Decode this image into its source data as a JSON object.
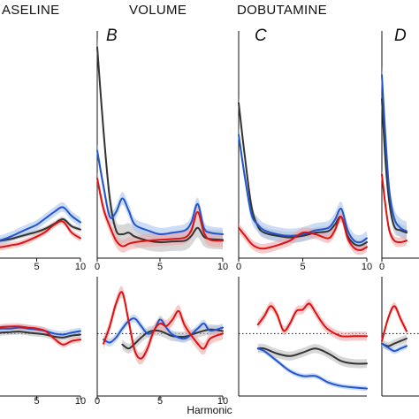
{
  "titles": [
    "ASELINE",
    "VOLUME",
    "DOBUTAMINE"
  ],
  "panel_labels": [
    "B",
    "C",
    "D"
  ],
  "x_axis_label": "Harmonic",
  "colors": {
    "black": "#333333",
    "blue": "#2255cc",
    "red": "#dd1111",
    "black_band": "#bdbdbd",
    "blue_band": "#aac4ee",
    "red_band": "#f0a8a8"
  },
  "chart_data": [
    {
      "type": "line",
      "row": "top",
      "condition": "BASELINE",
      "xlim": [
        0,
        10
      ],
      "xticks": [
        0,
        5,
        10
      ],
      "series": [
        {
          "color": "black",
          "x": [
            -1,
            0,
            1,
            2,
            3,
            4,
            5,
            6,
            7,
            8,
            9,
            10
          ],
          "y": [
            0.4,
            0.4,
            0.42,
            0.44,
            0.47,
            0.5,
            0.53,
            0.57,
            0.63,
            0.69,
            0.6,
            0.56
          ],
          "band": 0.03
        },
        {
          "color": "blue",
          "x": [
            -1,
            0,
            1,
            2,
            3,
            4,
            5,
            6,
            7,
            8,
            9,
            10
          ],
          "y": [
            0.42,
            0.41,
            0.43,
            0.47,
            0.52,
            0.57,
            0.62,
            0.7,
            0.78,
            0.84,
            0.73,
            0.65
          ],
          "band": 0.06
        },
        {
          "color": "red",
          "x": [
            -1,
            0,
            1,
            2,
            3,
            4,
            5,
            6,
            7,
            8,
            9,
            10
          ],
          "y": [
            0.34,
            0.33,
            0.34,
            0.36,
            0.38,
            0.42,
            0.47,
            0.53,
            0.62,
            0.66,
            0.52,
            0.45
          ],
          "band": 0.04
        }
      ]
    },
    {
      "type": "line",
      "row": "top",
      "condition": "VOLUME",
      "xlim": [
        0,
        10
      ],
      "xticks": [
        0,
        5,
        10
      ],
      "series": [
        {
          "color": "black",
          "x": [
            0,
            0.5,
            1,
            1.5,
            2,
            2.5,
            3,
            4,
            5,
            6,
            7,
            7.5,
            8,
            8.5,
            9,
            10
          ],
          "y": [
            2.85,
            1.8,
            0.95,
            0.55,
            0.5,
            0.52,
            0.47,
            0.42,
            0.4,
            0.41,
            0.42,
            0.48,
            0.58,
            0.47,
            0.44,
            0.43
          ],
          "band": 0.12
        },
        {
          "color": "blue",
          "x": [
            0,
            0.5,
            1,
            1.5,
            2,
            2.5,
            3,
            4,
            5,
            6,
            7,
            7.5,
            8,
            8.5,
            9,
            10
          ],
          "y": [
            1.55,
            1.1,
            0.72,
            0.78,
            0.95,
            0.8,
            0.62,
            0.55,
            0.5,
            0.52,
            0.55,
            0.65,
            0.88,
            0.58,
            0.52,
            0.5
          ],
          "band": 0.08
        },
        {
          "color": "red",
          "x": [
            0,
            0.5,
            1,
            1.5,
            2,
            2.5,
            3,
            4,
            5,
            6,
            7,
            7.5,
            8,
            8.5,
            9,
            10
          ],
          "y": [
            1.2,
            0.82,
            0.6,
            0.42,
            0.35,
            0.38,
            0.4,
            0.42,
            0.43,
            0.44,
            0.46,
            0.55,
            0.78,
            0.52,
            0.43,
            0.42
          ],
          "band": 0.08
        }
      ]
    },
    {
      "type": "line",
      "row": "top",
      "condition": "DOBUTAMINE",
      "xlim": [
        0,
        10
      ],
      "xticks": [
        0,
        5,
        10
      ],
      "series": [
        {
          "color": "black",
          "x": [
            0,
            0.5,
            1,
            1.5,
            2,
            3,
            4,
            5,
            6,
            7,
            7.5,
            8,
            8.5,
            9,
            9.5,
            10
          ],
          "y": [
            2.15,
            1.45,
            0.85,
            0.6,
            0.52,
            0.48,
            0.46,
            0.48,
            0.52,
            0.54,
            0.62,
            0.72,
            0.48,
            0.38,
            0.36,
            0.4
          ],
          "band": 0.07
        },
        {
          "color": "blue",
          "x": [
            0,
            0.5,
            1,
            1.5,
            2,
            3,
            4,
            5,
            6,
            7,
            7.5,
            8,
            8.5,
            9,
            9.5,
            10
          ],
          "y": [
            1.75,
            1.2,
            0.75,
            0.62,
            0.55,
            0.5,
            0.48,
            0.5,
            0.55,
            0.58,
            0.68,
            0.82,
            0.55,
            0.42,
            0.4,
            0.45
          ],
          "band": 0.09
        },
        {
          "color": "red",
          "x": [
            0,
            0.5,
            1,
            1.5,
            2,
            3,
            4,
            5,
            6,
            7,
            7.5,
            8,
            8.5,
            9,
            9.5,
            10
          ],
          "y": [
            0.58,
            0.48,
            0.38,
            0.33,
            0.32,
            0.36,
            0.42,
            0.52,
            0.5,
            0.45,
            0.55,
            0.72,
            0.45,
            0.33,
            0.3,
            0.34
          ],
          "band": 0.06
        }
      ]
    },
    {
      "type": "line",
      "row": "top",
      "condition": "D",
      "xlim": [
        0,
        10
      ],
      "xticks": [
        0
      ],
      "series": [
        {
          "color": "black",
          "x": [
            0,
            0.3,
            0.6,
            1.0,
            1.5,
            2.0
          ],
          "y": [
            2.2,
            1.4,
            0.9,
            0.6,
            0.55,
            0.52
          ],
          "band": 0.08
        },
        {
          "color": "blue",
          "x": [
            0,
            0.3,
            0.6,
            1.0,
            1.5,
            2.0
          ],
          "y": [
            2.5,
            1.7,
            1.05,
            0.7,
            0.58,
            0.54
          ],
          "band": 0.12
        },
        {
          "color": "red",
          "x": [
            0,
            0.3,
            0.6,
            1.0,
            1.5,
            2.0
          ],
          "y": [
            1.25,
            0.85,
            0.55,
            0.42,
            0.4,
            0.42
          ],
          "band": 0.06
        }
      ]
    },
    {
      "type": "line",
      "row": "bottom",
      "condition": "BASELINE",
      "xlim": [
        0,
        10
      ],
      "xticks": [
        5,
        10
      ],
      "series": [
        {
          "color": "black",
          "x": [
            -1,
            0,
            1,
            2,
            3,
            4,
            5,
            6,
            7,
            8,
            9,
            10
          ],
          "y": [
            0.02,
            0.0,
            0.02,
            0.03,
            0.04,
            0.02,
            0.0,
            -0.02,
            -0.06,
            -0.08,
            -0.04,
            -0.02
          ],
          "band": 0.06
        },
        {
          "color": "blue",
          "x": [
            -1,
            0,
            1,
            2,
            3,
            4,
            5,
            6,
            7,
            8,
            9,
            10
          ],
          "y": [
            0.06,
            0.08,
            0.1,
            0.1,
            0.12,
            0.1,
            0.08,
            0.05,
            0.0,
            -0.02,
            0.02,
            0.05
          ],
          "band": 0.07
        },
        {
          "color": "red",
          "x": [
            -1,
            0,
            1,
            2,
            3,
            4,
            5,
            6,
            7,
            8,
            9,
            10
          ],
          "y": [
            0.05,
            0.1,
            0.13,
            0.14,
            0.14,
            0.12,
            0.1,
            0.05,
            -0.1,
            -0.22,
            -0.15,
            -0.12
          ],
          "band": 0.06
        }
      ]
    },
    {
      "type": "line",
      "row": "bottom",
      "condition": "VOLUME",
      "xlim": [
        0,
        10
      ],
      "xticks": [
        0,
        5,
        10
      ],
      "series": [
        {
          "color": "black",
          "x": [
            2,
            2.5,
            3,
            3.5,
            4,
            4.5,
            5,
            5.5,
            6,
            7,
            8,
            9,
            10
          ],
          "y": [
            -0.22,
            -0.3,
            -0.2,
            -0.08,
            0.02,
            0.06,
            0.05,
            0.0,
            -0.05,
            -0.06,
            0.02,
            0.08,
            0.05
          ],
          "band": 0.1
        },
        {
          "color": "blue",
          "x": [
            0.5,
            1,
            1.5,
            2,
            2.5,
            3,
            3.5,
            4,
            4.5,
            5,
            5.5,
            6,
            7,
            8,
            8.5,
            9,
            10
          ],
          "y": [
            -0.12,
            -0.18,
            -0.08,
            0.1,
            0.25,
            0.3,
            0.15,
            0.0,
            0.05,
            0.28,
            0.12,
            -0.02,
            -0.1,
            0.1,
            0.2,
            0.06,
            0.12
          ],
          "band": 0.08
        },
        {
          "color": "red",
          "x": [
            0.5,
            1,
            1.5,
            2,
            2.5,
            3,
            3.5,
            4,
            4.5,
            5,
            5.5,
            6,
            6.5,
            7,
            8,
            8.5,
            9,
            10
          ],
          "y": [
            -0.2,
            0.15,
            0.6,
            0.82,
            0.25,
            -0.35,
            -0.5,
            -0.3,
            0.05,
            0.2,
            0.15,
            0.28,
            0.45,
            0.15,
            -0.2,
            -0.3,
            -0.1,
            0.0
          ],
          "band": 0.12
        }
      ]
    },
    {
      "type": "line",
      "row": "bottom",
      "condition": "DOBUTAMINE",
      "xlim": [
        0,
        10
      ],
      "xticks": [],
      "series": [
        {
          "color": "black",
          "x": [
            1.5,
            2,
            3,
            4,
            5,
            6,
            7,
            8,
            9,
            10
          ],
          "y": [
            -0.3,
            -0.3,
            -0.4,
            -0.45,
            -0.38,
            -0.3,
            -0.4,
            -0.55,
            -0.6,
            -0.6
          ],
          "band": 0.09
        },
        {
          "color": "blue",
          "x": [
            1.5,
            2,
            3,
            4,
            5,
            6,
            7,
            8,
            9,
            10
          ],
          "y": [
            -0.3,
            -0.35,
            -0.55,
            -0.75,
            -0.85,
            -0.85,
            -0.98,
            -1.05,
            -1.08,
            -1.1
          ],
          "band": 0.05
        },
        {
          "color": "red",
          "x": [
            1.5,
            2,
            2.5,
            3,
            3.5,
            4,
            4.5,
            5,
            5.5,
            6,
            6.5,
            7,
            8,
            9,
            10
          ],
          "y": [
            0.18,
            0.35,
            0.55,
            0.38,
            0.06,
            0.2,
            0.45,
            0.48,
            0.6,
            0.42,
            0.22,
            0.08,
            -0.05,
            -0.05,
            -0.05
          ],
          "band": 0.09
        }
      ]
    },
    {
      "type": "line",
      "row": "bottom",
      "condition": "D",
      "xlim": [
        0,
        10
      ],
      "xticks": [],
      "series": [
        {
          "color": "black",
          "x": [
            0,
            0.5,
            1,
            1.5,
            2
          ],
          "y": [
            -0.2,
            -0.25,
            -0.2,
            -0.15,
            -0.1
          ],
          "band": 0.08
        },
        {
          "color": "blue",
          "x": [
            0,
            0.5,
            1,
            1.5,
            2
          ],
          "y": [
            -0.2,
            -0.28,
            -0.35,
            -0.3,
            -0.25
          ],
          "band": 0.06
        },
        {
          "color": "red",
          "x": [
            0,
            0.5,
            1,
            1.5,
            2
          ],
          "y": [
            -0.15,
            0.3,
            0.55,
            0.3,
            0.05
          ],
          "band": 0.08
        }
      ]
    }
  ]
}
